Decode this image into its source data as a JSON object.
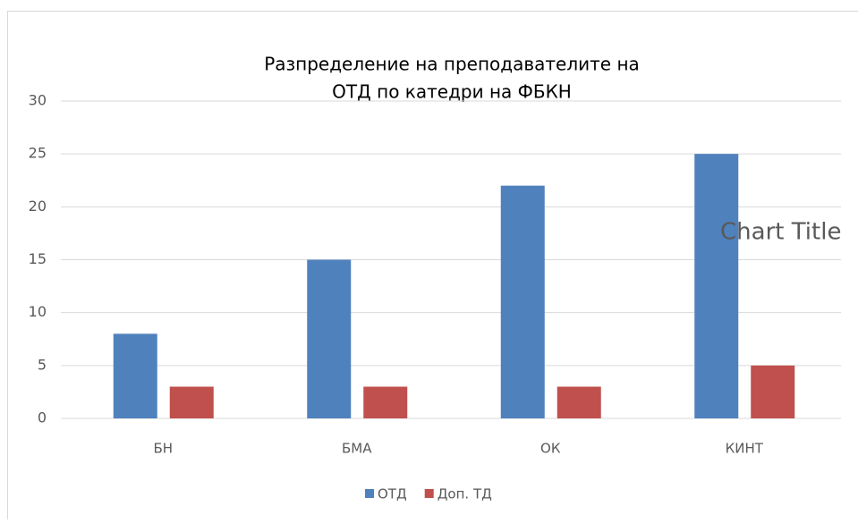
{
  "chart_data": {
    "type": "bar",
    "title": [
      "Разпределение на преподавателите на",
      "ОТД по катедри на ФБКН"
    ],
    "annotations": [
      "Chart Title"
    ],
    "categories": [
      "БН",
      "БМА",
      "ОК",
      "КИНТ"
    ],
    "series": [
      {
        "name": "ОТД",
        "color": "#4f81bd",
        "values": [
          8,
          15,
          22,
          25
        ]
      },
      {
        "name": "Доп. ТД",
        "color": "#c0504d",
        "values": [
          3,
          3,
          3,
          5
        ]
      }
    ],
    "ylim": [
      0,
      30
    ],
    "yticks": [
      0,
      5,
      10,
      15,
      20,
      25,
      30
    ],
    "grid": true,
    "legend": "bottom"
  }
}
